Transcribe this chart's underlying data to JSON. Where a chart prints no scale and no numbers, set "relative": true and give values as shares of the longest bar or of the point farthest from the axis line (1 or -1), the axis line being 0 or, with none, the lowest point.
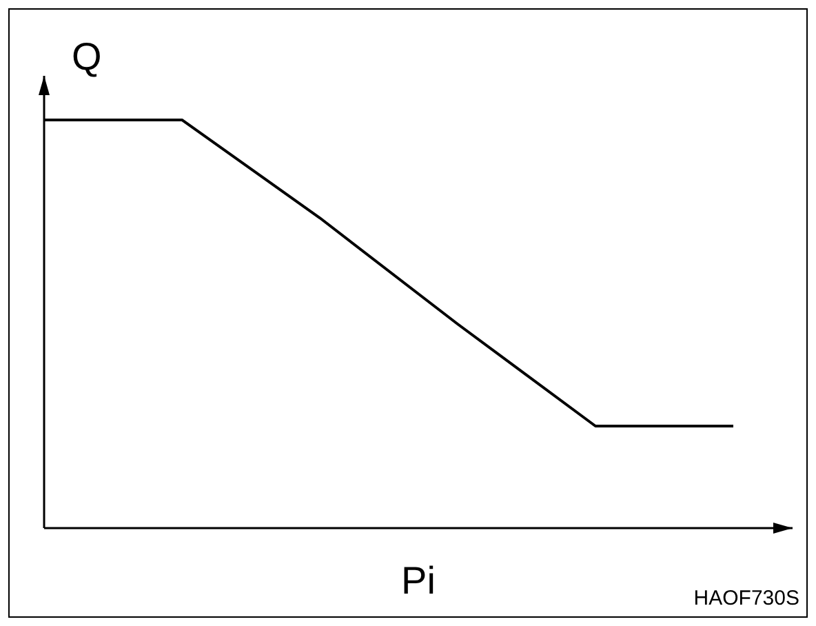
{
  "chart_data": {
    "type": "line",
    "xlabel": "Pi",
    "ylabel": "Q",
    "categories": [
      null,
      null,
      null,
      null,
      null,
      null
    ],
    "series": [
      {
        "color": "#000000",
        "values": [
          1,
          1,
          0.76,
          0.5,
          0.25,
          0.25
        ]
      }
    ],
    "relative": true,
    "marker": "none",
    "line_style": "solid",
    "legend": false,
    "annotations": [
      "HAOF730S"
    ]
  }
}
